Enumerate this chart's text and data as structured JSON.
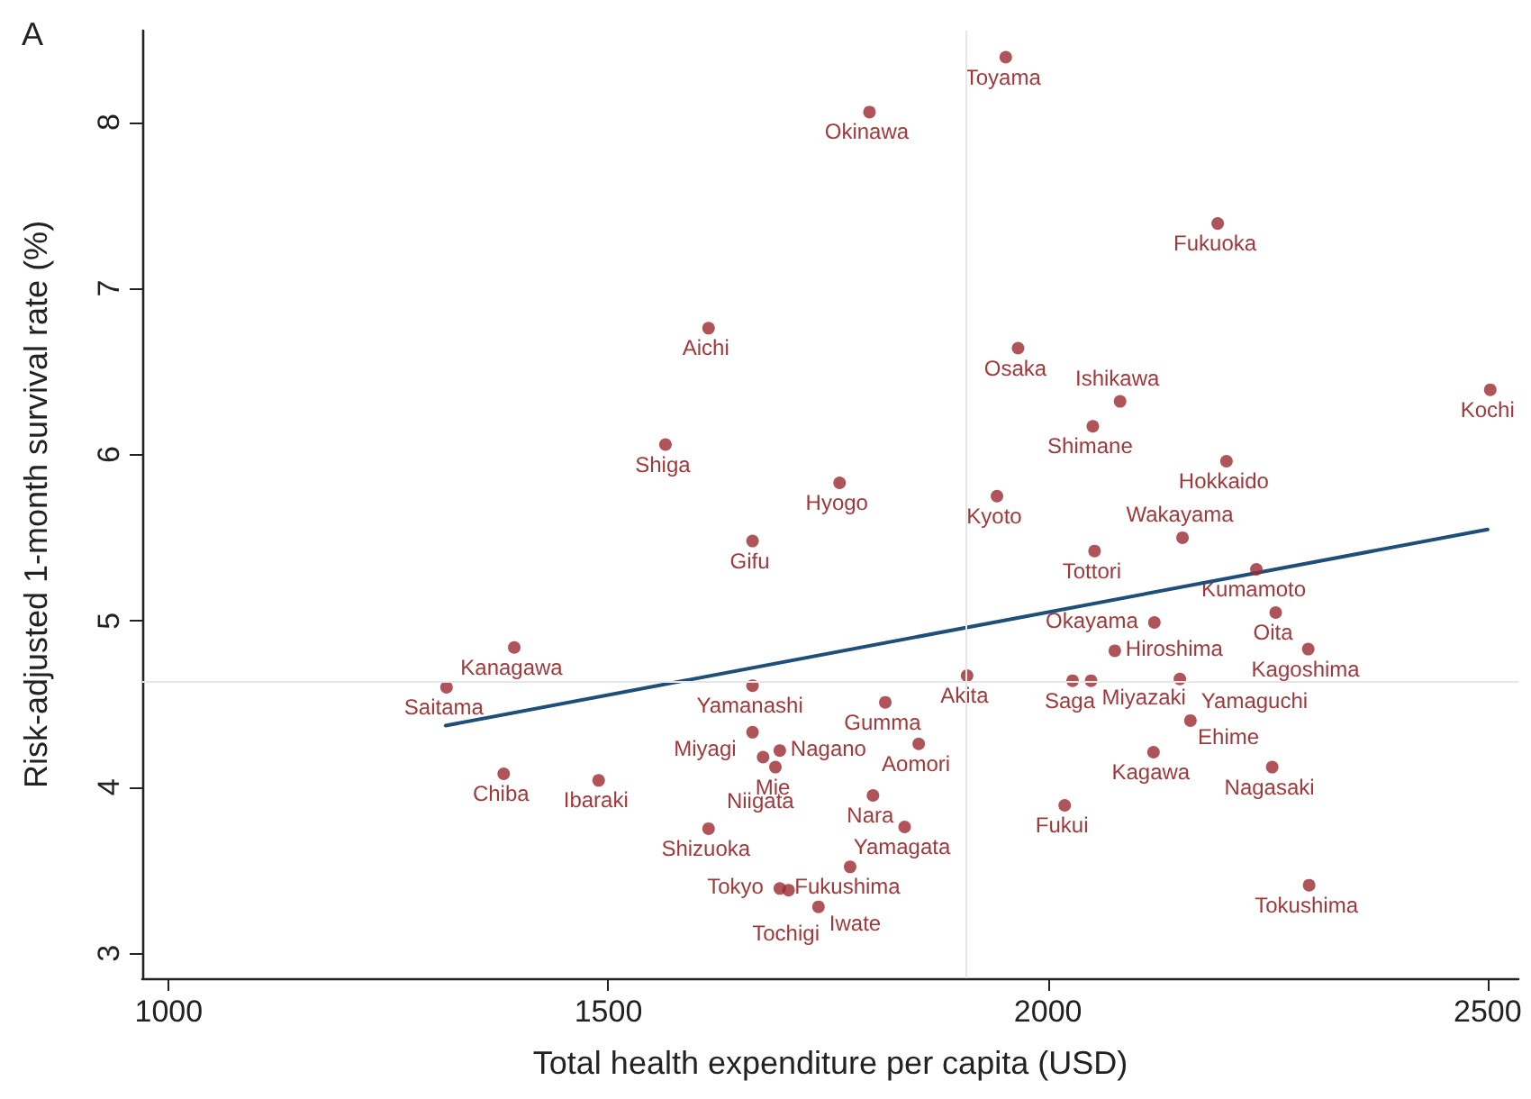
{
  "chart_data": {
    "type": "scatter",
    "xlabel": "Total health expenditure per capita (USD)",
    "ylabel": "Risk-adjusted 1-month survival rate (%)",
    "xlim": [
      970,
      2535
    ],
    "ylim": [
      2.85,
      8.55
    ],
    "xticks": [
      1000,
      1500,
      2000,
      2500
    ],
    "yticks": [
      3,
      4,
      5,
      6,
      7,
      8
    ],
    "grid": false,
    "marker": "circle",
    "series": [
      {
        "color": "#9b2a2f",
        "x": [
          1797,
          1614,
          1565,
          1763,
          1664,
          1952,
          2193,
          1966,
          2082,
          2051,
          2503,
          2203,
          1942,
          2053,
          2153,
          2237,
          2259,
          2296,
          2121,
          2076,
          2028,
          2049,
          2150,
          2162,
          2120,
          2255,
          2019,
          2297,
          1908,
          1393,
          1316,
          1381,
          1489,
          1664,
          1815,
          1853,
          1801,
          1837,
          1614,
          1664,
          1695,
          1676,
          1690,
          1775,
          1695,
          1705,
          1739
        ],
        "values": [
          8.06,
          6.76,
          6.06,
          5.83,
          5.48,
          8.39,
          7.39,
          6.64,
          6.32,
          6.17,
          6.39,
          5.96,
          5.75,
          5.42,
          5.5,
          5.31,
          5.05,
          4.83,
          4.99,
          4.82,
          4.64,
          4.64,
          4.65,
          4.4,
          4.21,
          4.12,
          3.89,
          3.41,
          4.67,
          4.84,
          4.6,
          4.08,
          4.04,
          4.61,
          4.51,
          4.26,
          3.95,
          3.76,
          3.75,
          4.33,
          4.22,
          4.18,
          4.12,
          3.52,
          3.39,
          3.38,
          3.28
        ]
      },
      {
        "type": "line",
        "color": "#1f4e79",
        "marker": "none",
        "x": [
          1315,
          2500
        ],
        "values": [
          4.37,
          5.55
        ]
      }
    ],
    "ref_lines": [
      {
        "axis": "x",
        "value": 1907,
        "color": "#e6e6e6"
      },
      {
        "axis": "y",
        "value": 4.64,
        "color": "#e6e6e6"
      }
    ],
    "annotations": [
      "A",
      {
        "text": "Okinawa",
        "x": 1797,
        "y": 8.06
      },
      {
        "text": "Aichi",
        "x": 1614,
        "y": 6.76
      },
      {
        "text": "Shiga",
        "x": 1565,
        "y": 6.06
      },
      {
        "text": "Hyogo",
        "x": 1763,
        "y": 5.83
      },
      {
        "text": "Gifu",
        "x": 1664,
        "y": 5.48
      },
      {
        "text": "Toyama",
        "x": 1952,
        "y": 8.39
      },
      {
        "text": "Fukuoka",
        "x": 2193,
        "y": 7.39
      },
      {
        "text": "Osaka",
        "x": 1966,
        "y": 6.64
      },
      {
        "text": "Ishikawa",
        "x": 2082,
        "y": 6.32
      },
      {
        "text": "Shimane",
        "x": 2051,
        "y": 6.17
      },
      {
        "text": "Kochi",
        "x": 2503,
        "y": 6.39
      },
      {
        "text": "Hokkaido",
        "x": 2203,
        "y": 5.96
      },
      {
        "text": "Kyoto",
        "x": 1942,
        "y": 5.75
      },
      {
        "text": "Tottori",
        "x": 2053,
        "y": 5.42
      },
      {
        "text": "Wakayama",
        "x": 2153,
        "y": 5.5
      },
      {
        "text": "Kumamoto",
        "x": 2237,
        "y": 5.31
      },
      {
        "text": "Oita",
        "x": 2259,
        "y": 5.05
      },
      {
        "text": "Kagoshima",
        "x": 2296,
        "y": 4.83
      },
      {
        "text": "Okayama",
        "x": 2121,
        "y": 4.99
      },
      {
        "text": "Hiroshima",
        "x": 2076,
        "y": 4.82
      },
      {
        "text": "Saga",
        "x": 2028,
        "y": 4.64
      },
      {
        "text": "Miyazaki",
        "x": 2049,
        "y": 4.64
      },
      {
        "text": "Ehime",
        "x": 2150,
        "y": 4.65
      },
      {
        "text": "Yamaguchi",
        "x": 2162,
        "y": 4.4
      },
      {
        "text": "Kagawa",
        "x": 2120,
        "y": 4.21
      },
      {
        "text": "Nagasaki",
        "x": 2255,
        "y": 4.12
      },
      {
        "text": "Fukui",
        "x": 2019,
        "y": 3.89
      },
      {
        "text": "Tokushima",
        "x": 2297,
        "y": 3.41
      },
      {
        "text": "Akita",
        "x": 1908,
        "y": 4.67
      },
      {
        "text": "Kanagawa",
        "x": 1393,
        "y": 4.84
      },
      {
        "text": "Saitama",
        "x": 1316,
        "y": 4.6
      },
      {
        "text": "Chiba",
        "x": 1381,
        "y": 4.08
      },
      {
        "text": "Ibaraki",
        "x": 1489,
        "y": 4.04
      },
      {
        "text": "Yamanashi",
        "x": 1664,
        "y": 4.61
      },
      {
        "text": "Gumma",
        "x": 1815,
        "y": 4.51
      },
      {
        "text": "Aomori",
        "x": 1853,
        "y": 4.26
      },
      {
        "text": "Nara",
        "x": 1801,
        "y": 3.95
      },
      {
        "text": "Yamagata",
        "x": 1837,
        "y": 3.76
      },
      {
        "text": "Shizuoka",
        "x": 1614,
        "y": 3.75
      },
      {
        "text": "Miyagi",
        "x": 1664,
        "y": 4.33
      },
      {
        "text": "Nagano",
        "x": 1695,
        "y": 4.22
      },
      {
        "text": "Niigata",
        "x": 1676,
        "y": 4.18
      },
      {
        "text": "Mie",
        "x": 1690,
        "y": 4.12
      },
      {
        "text": "Fukushima",
        "x": 1775,
        "y": 3.52
      },
      {
        "text": "Tokyo",
        "x": 1695,
        "y": 3.39
      },
      {
        "text": "Tochigi",
        "x": 1705,
        "y": 3.38
      },
      {
        "text": "Iwate",
        "x": 1739,
        "y": 3.28
      }
    ]
  }
}
